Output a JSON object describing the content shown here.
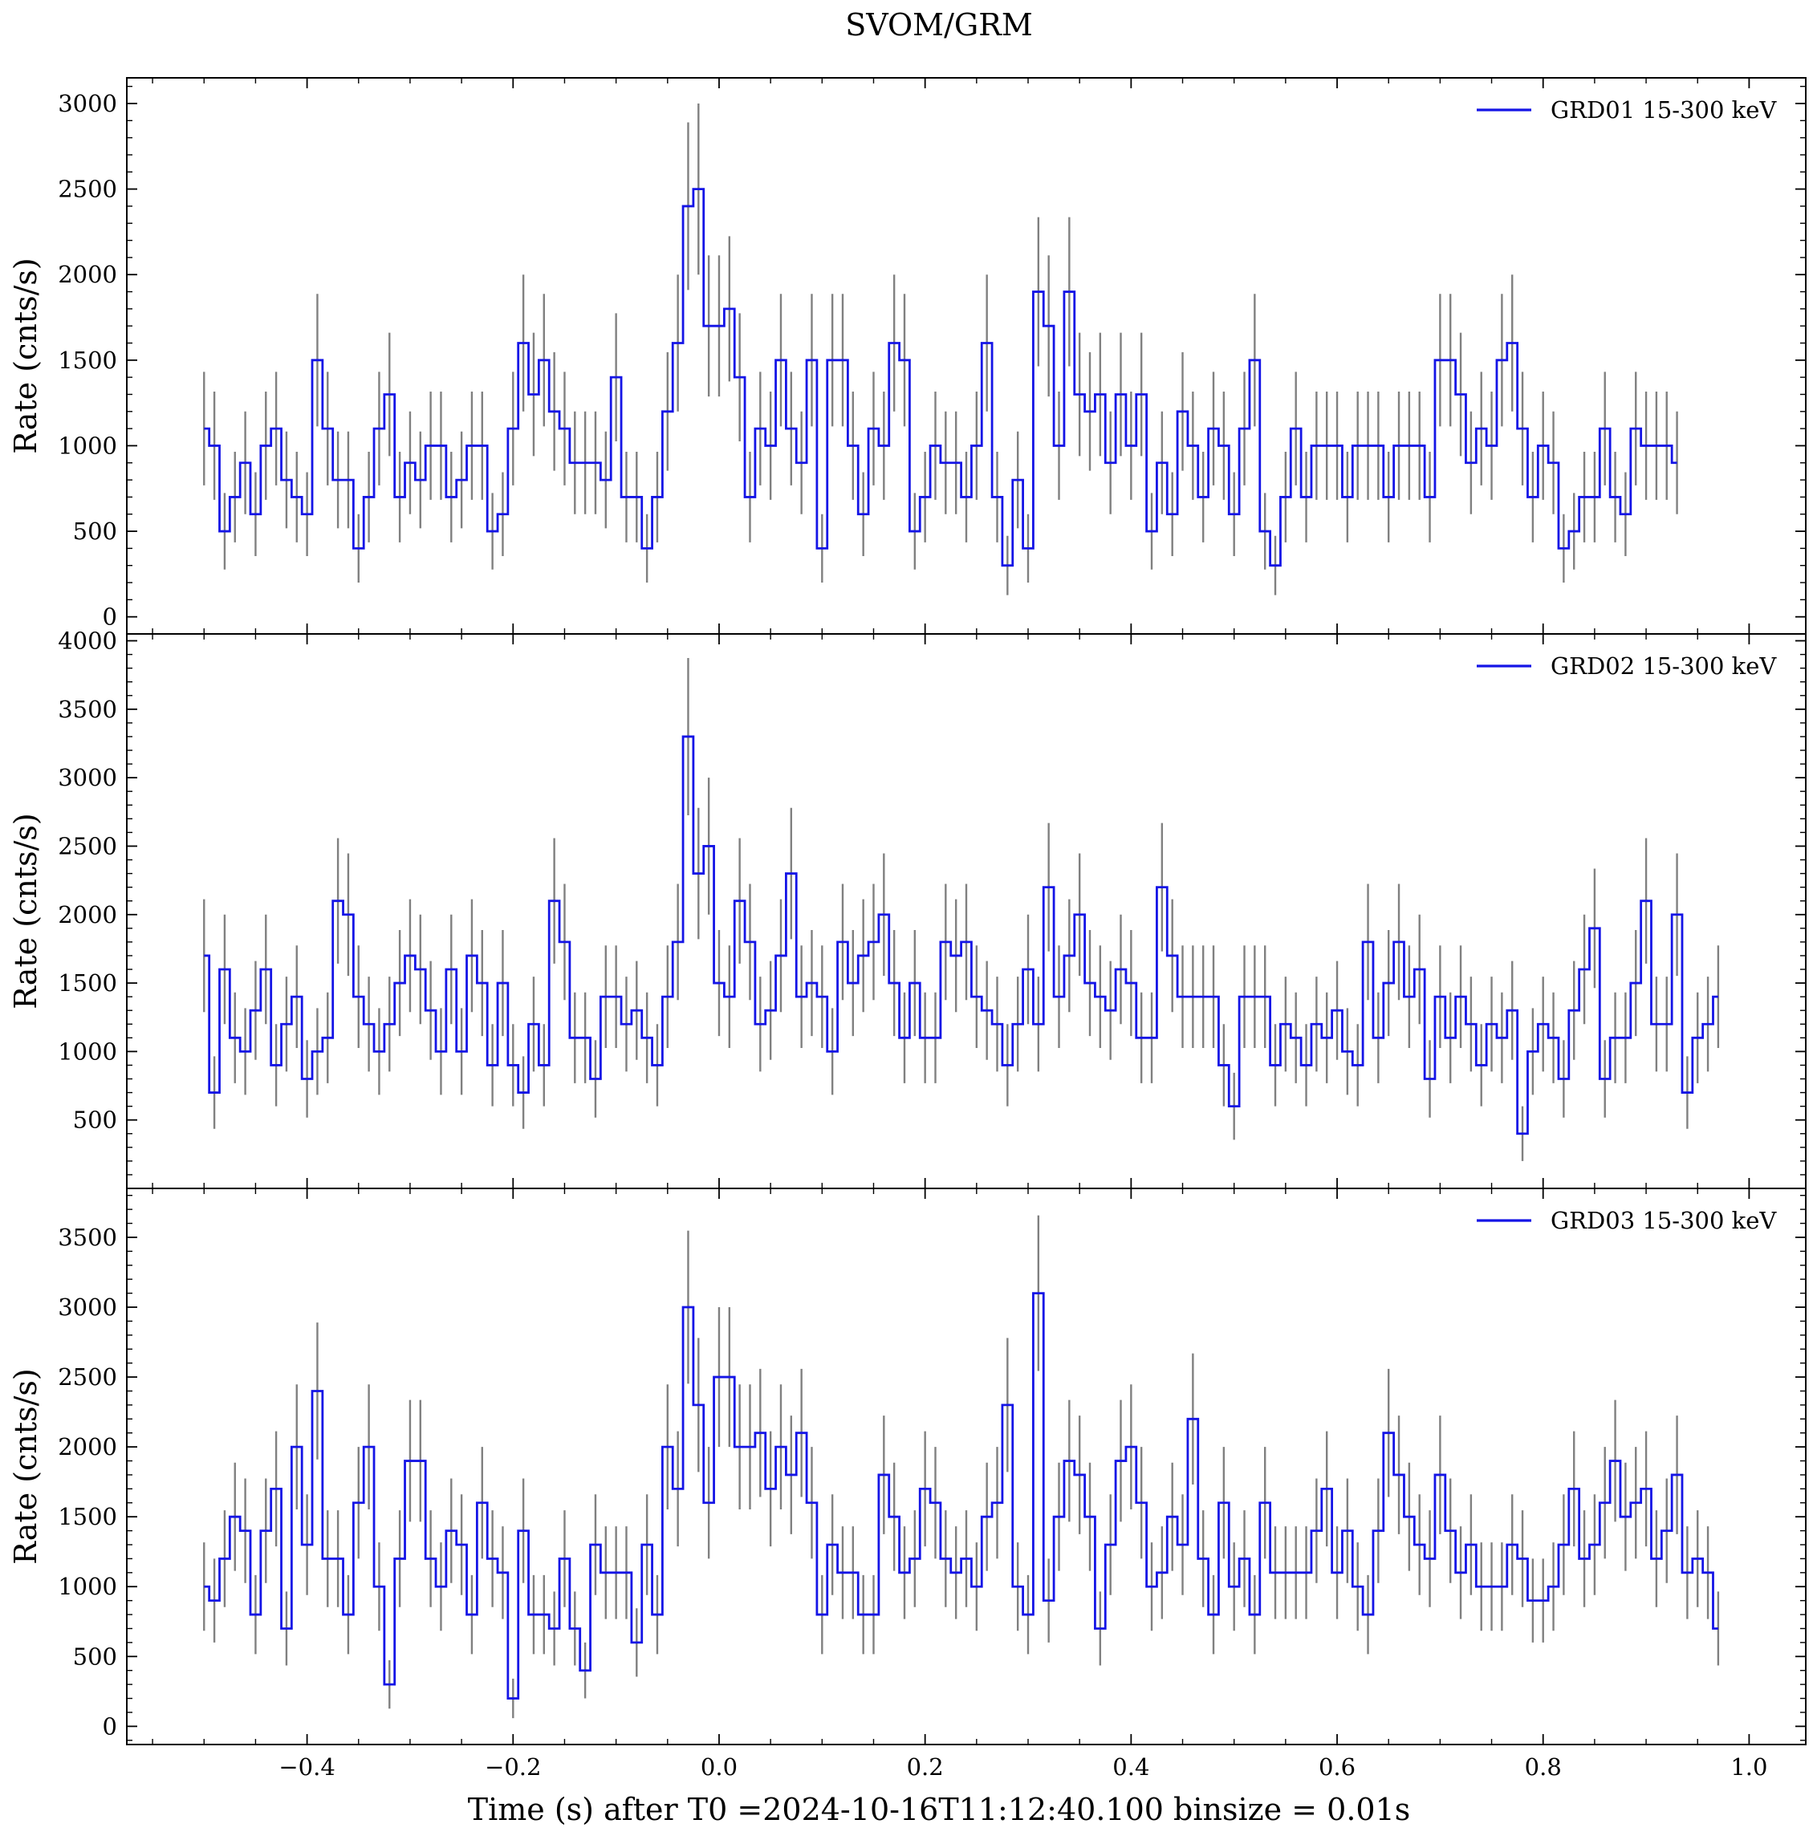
{
  "title": "SVOM/GRM",
  "xlabel": "Time (s) after T0 =2024-10-16T11:12:40.100 binsize = 0.01s",
  "ylabel": "Rate (cnts/s)",
  "colors": {
    "line": "#1414e6",
    "errorbar": "#808080",
    "axes": "#000000"
  },
  "chart_data": [
    {
      "type": "line",
      "drawstyle": "steps-mid",
      "legend": "GRD01 15-300 keV",
      "legend_position": "top-right",
      "xlim": [
        -0.575,
        1.055
      ],
      "ylim": [
        -100,
        3150
      ],
      "yticks": [
        0,
        500,
        1000,
        1500,
        2000,
        2500,
        3000
      ],
      "xticks": [
        -0.4,
        -0.2,
        0.0,
        0.2,
        0.4,
        0.6,
        0.8,
        1.0
      ],
      "x_start": -0.5,
      "x_step": 0.01,
      "values": [
        1100,
        1000,
        500,
        700,
        900,
        600,
        1000,
        1100,
        800,
        700,
        600,
        1500,
        1100,
        800,
        800,
        400,
        700,
        1100,
        1300,
        700,
        900,
        800,
        1000,
        1000,
        700,
        800,
        1000,
        1000,
        500,
        600,
        1100,
        1600,
        1300,
        1500,
        1200,
        1100,
        900,
        900,
        900,
        800,
        1400,
        700,
        700,
        400,
        700,
        1200,
        1600,
        2400,
        2500,
        1700,
        1700,
        1800,
        1400,
        700,
        1100,
        1000,
        1500,
        1100,
        900,
        1500,
        400,
        1500,
        1500,
        1000,
        600,
        1100,
        1000,
        1600,
        1500,
        500,
        700,
        1000,
        900,
        900,
        700,
        1000,
        1600,
        700,
        300,
        800,
        400,
        1900,
        1700,
        1000,
        1900,
        1300,
        1200,
        1300,
        900,
        1300,
        1000,
        1300,
        500,
        900,
        600,
        1200,
        1000,
        700,
        1100,
        1000,
        600,
        1100,
        1500,
        500,
        300,
        700,
        1100,
        700,
        1000,
        1000,
        1000,
        700,
        1000,
        1000,
        1000,
        700,
        1000,
        1000,
        1000,
        700,
        1500,
        1500,
        1300,
        900,
        1100,
        1000,
        1500,
        1600,
        1100,
        700,
        1000,
        900,
        400,
        500,
        700,
        700,
        1100,
        700,
        600,
        1100,
        1000,
        1000,
        1000,
        900
      ]
    },
    {
      "type": "line",
      "drawstyle": "steps-mid",
      "legend": "GRD02 15-300 keV",
      "legend_position": "top-right",
      "xlim": [
        -0.575,
        1.055
      ],
      "ylim": [
        0,
        4050
      ],
      "yticks": [
        500,
        1000,
        1500,
        2000,
        2500,
        3000,
        3500,
        4000
      ],
      "xticks": [
        -0.4,
        -0.2,
        0.0,
        0.2,
        0.4,
        0.6,
        0.8,
        1.0
      ],
      "x_start": -0.5,
      "x_step": 0.01,
      "values": [
        1700,
        700,
        1600,
        1100,
        1000,
        1300,
        1600,
        900,
        1200,
        1400,
        800,
        1000,
        1100,
        2100,
        2000,
        1400,
        1200,
        1000,
        1200,
        1500,
        1700,
        1600,
        1300,
        1000,
        1600,
        1000,
        1700,
        1500,
        900,
        1500,
        900,
        700,
        1200,
        900,
        2100,
        1800,
        1100,
        1100,
        800,
        1400,
        1400,
        1200,
        1300,
        1100,
        900,
        1400,
        1800,
        3300,
        2300,
        2500,
        1500,
        1400,
        2100,
        1800,
        1200,
        1300,
        1700,
        2300,
        1400,
        1500,
        1400,
        1000,
        1800,
        1500,
        1700,
        1800,
        2000,
        1500,
        1100,
        1500,
        1100,
        1100,
        1800,
        1700,
        1800,
        1400,
        1300,
        1200,
        900,
        1200,
        1600,
        1200,
        2200,
        1400,
        1700,
        2000,
        1500,
        1400,
        1300,
        1600,
        1500,
        1100,
        1100,
        2200,
        1700,
        1400,
        1400,
        1400,
        1400,
        900,
        600,
        1400,
        1400,
        1400,
        900,
        1200,
        1100,
        900,
        1200,
        1100,
        1300,
        1000,
        900,
        1800,
        1100,
        1500,
        1800,
        1400,
        1600,
        800,
        1400,
        1100,
        1400,
        1200,
        900,
        1200,
        1100,
        1300,
        400,
        1000,
        1200,
        1100,
        800,
        1300,
        1600,
        1900,
        800,
        1100,
        1100,
        1500,
        2100,
        1200,
        1200,
        2000,
        700,
        1100,
        1200,
        1400
      ]
    },
    {
      "type": "line",
      "drawstyle": "steps-mid",
      "legend": "GRD03 15-300 keV",
      "legend_position": "top-right",
      "xlim": [
        -0.575,
        1.055
      ],
      "ylim": [
        -130,
        3850
      ],
      "yticks": [
        0,
        500,
        1000,
        1500,
        2000,
        2500,
        3000,
        3500
      ],
      "xticks": [
        -0.4,
        -0.2,
        0.0,
        0.2,
        0.4,
        0.6,
        0.8,
        1.0
      ],
      "xticklabels": [
        "−0.4",
        "−0.2",
        "0.0",
        "0.2",
        "0.4",
        "0.6",
        "0.8",
        "1.0"
      ],
      "x_start": -0.5,
      "x_step": 0.01,
      "values": [
        1000,
        900,
        1200,
        1500,
        1400,
        800,
        1400,
        1700,
        700,
        2000,
        1300,
        2400,
        1200,
        1200,
        800,
        1600,
        2000,
        1000,
        300,
        1200,
        1900,
        1900,
        1200,
        1000,
        1400,
        1300,
        800,
        1600,
        1200,
        1100,
        200,
        1400,
        800,
        800,
        700,
        1200,
        700,
        400,
        1300,
        1100,
        1100,
        1100,
        600,
        1300,
        800,
        2000,
        1700,
        3000,
        2300,
        1600,
        2500,
        2500,
        2000,
        2000,
        2100,
        1700,
        2000,
        1800,
        2100,
        1600,
        800,
        1300,
        1100,
        1100,
        800,
        800,
        1800,
        1500,
        1100,
        1200,
        1700,
        1600,
        1200,
        1100,
        1200,
        1000,
        1500,
        1600,
        2300,
        1000,
        800,
        3100,
        900,
        1500,
        1900,
        1800,
        1500,
        700,
        1300,
        1900,
        2000,
        1600,
        1000,
        1100,
        1500,
        1300,
        2200,
        1200,
        800,
        1600,
        1000,
        1200,
        800,
        1600,
        1100,
        1100,
        1100,
        1100,
        1400,
        1700,
        1100,
        1400,
        1000,
        800,
        1400,
        2100,
        1800,
        1500,
        1300,
        1200,
        1800,
        1400,
        1100,
        1300,
        1000,
        1000,
        1000,
        1300,
        1200,
        900,
        900,
        1000,
        1300,
        1700,
        1200,
        1300,
        1600,
        1900,
        1500,
        1600,
        1700,
        1200,
        1400,
        1800,
        1100,
        1200,
        1100,
        700
      ]
    }
  ]
}
